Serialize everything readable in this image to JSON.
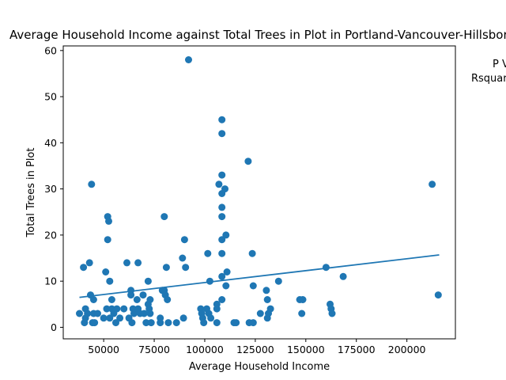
{
  "chart_data": {
    "type": "scatter",
    "title": "Average Household Income against Total Trees in Plot in Portland-Vancouver-Hillsboro",
    "xlabel": "Average Household Income",
    "ylabel": "Total Trees in Plot",
    "xlim": [
      30000,
      224000
    ],
    "ylim": [
      -2.5,
      61
    ],
    "xticks": [
      50000,
      75000,
      100000,
      125000,
      150000,
      175000,
      200000
    ],
    "xtick_labels": [
      "50000",
      "75000",
      "100000",
      "125000",
      "150000",
      "175000",
      "200000"
    ],
    "yticks": [
      0,
      10,
      20,
      30,
      40,
      50,
      60
    ],
    "ytick_labels": [
      "0",
      "10",
      "20",
      "30",
      "40",
      "50",
      "60"
    ],
    "grid": false,
    "annotation_lines": [
      "P V",
      "Rsquar"
    ],
    "colors": {
      "points": "#1f77b4",
      "trendline": "#1f77b4"
    },
    "trendline": {
      "x": [
        38000,
        216000
      ],
      "y": [
        6.5,
        15.7
      ]
    },
    "points": [
      {
        "x": 38000,
        "y": 3
      },
      {
        "x": 40000,
        "y": 13
      },
      {
        "x": 40500,
        "y": 1
      },
      {
        "x": 41000,
        "y": 4
      },
      {
        "x": 41000,
        "y": 2
      },
      {
        "x": 42000,
        "y": 3
      },
      {
        "x": 43000,
        "y": 14
      },
      {
        "x": 43500,
        "y": 7
      },
      {
        "x": 44000,
        "y": 31
      },
      {
        "x": 44500,
        "y": 1
      },
      {
        "x": 45000,
        "y": 6
      },
      {
        "x": 45000,
        "y": 3
      },
      {
        "x": 45500,
        "y": 1
      },
      {
        "x": 47000,
        "y": 3
      },
      {
        "x": 50000,
        "y": 2
      },
      {
        "x": 51000,
        "y": 12
      },
      {
        "x": 51500,
        "y": 4
      },
      {
        "x": 52000,
        "y": 24
      },
      {
        "x": 52000,
        "y": 19
      },
      {
        "x": 52500,
        "y": 23
      },
      {
        "x": 53000,
        "y": 10
      },
      {
        "x": 53000,
        "y": 2
      },
      {
        "x": 54000,
        "y": 4
      },
      {
        "x": 54000,
        "y": 6
      },
      {
        "x": 55000,
        "y": 3
      },
      {
        "x": 56000,
        "y": 1
      },
      {
        "x": 56500,
        "y": 4
      },
      {
        "x": 58000,
        "y": 2
      },
      {
        "x": 60000,
        "y": 4
      },
      {
        "x": 61500,
        "y": 14
      },
      {
        "x": 62500,
        "y": 2
      },
      {
        "x": 63500,
        "y": 8
      },
      {
        "x": 63500,
        "y": 7
      },
      {
        "x": 64000,
        "y": 1
      },
      {
        "x": 64500,
        "y": 4
      },
      {
        "x": 65000,
        "y": 3
      },
      {
        "x": 66500,
        "y": 6
      },
      {
        "x": 67000,
        "y": 14
      },
      {
        "x": 67000,
        "y": 4
      },
      {
        "x": 68000,
        "y": 3
      },
      {
        "x": 69500,
        "y": 7
      },
      {
        "x": 70000,
        "y": 3
      },
      {
        "x": 71000,
        "y": 1
      },
      {
        "x": 72000,
        "y": 10
      },
      {
        "x": 72000,
        "y": 5
      },
      {
        "x": 72500,
        "y": 4
      },
      {
        "x": 73000,
        "y": 3
      },
      {
        "x": 73000,
        "y": 6
      },
      {
        "x": 73500,
        "y": 1
      },
      {
        "x": 78000,
        "y": 2
      },
      {
        "x": 78000,
        "y": 1
      },
      {
        "x": 79000,
        "y": 8
      },
      {
        "x": 80000,
        "y": 24
      },
      {
        "x": 80000,
        "y": 8
      },
      {
        "x": 80500,
        "y": 7
      },
      {
        "x": 81000,
        "y": 13
      },
      {
        "x": 81500,
        "y": 6
      },
      {
        "x": 82000,
        "y": 1
      },
      {
        "x": 86000,
        "y": 1
      },
      {
        "x": 89000,
        "y": 15
      },
      {
        "x": 89500,
        "y": 2
      },
      {
        "x": 90000,
        "y": 19
      },
      {
        "x": 90500,
        "y": 13
      },
      {
        "x": 92000,
        "y": 58
      },
      {
        "x": 98000,
        "y": 4
      },
      {
        "x": 98500,
        "y": 3
      },
      {
        "x": 99000,
        "y": 2
      },
      {
        "x": 99500,
        "y": 1
      },
      {
        "x": 101000,
        "y": 4
      },
      {
        "x": 101500,
        "y": 16
      },
      {
        "x": 102000,
        "y": 3
      },
      {
        "x": 102500,
        "y": 10
      },
      {
        "x": 103000,
        "y": 2
      },
      {
        "x": 106000,
        "y": 1
      },
      {
        "x": 106000,
        "y": 5
      },
      {
        "x": 106000,
        "y": 4
      },
      {
        "x": 107000,
        "y": 31
      },
      {
        "x": 108500,
        "y": 45
      },
      {
        "x": 108500,
        "y": 42
      },
      {
        "x": 108500,
        "y": 33
      },
      {
        "x": 108500,
        "y": 29
      },
      {
        "x": 108500,
        "y": 26
      },
      {
        "x": 108500,
        "y": 24
      },
      {
        "x": 108500,
        "y": 19
      },
      {
        "x": 108500,
        "y": 16
      },
      {
        "x": 108500,
        "y": 11
      },
      {
        "x": 108500,
        "y": 6
      },
      {
        "x": 110000,
        "y": 30
      },
      {
        "x": 110500,
        "y": 20
      },
      {
        "x": 110500,
        "y": 9
      },
      {
        "x": 111000,
        "y": 12
      },
      {
        "x": 114500,
        "y": 1
      },
      {
        "x": 115500,
        "y": 1
      },
      {
        "x": 121500,
        "y": 36
      },
      {
        "x": 122000,
        "y": 1
      },
      {
        "x": 123500,
        "y": 16
      },
      {
        "x": 124000,
        "y": 9
      },
      {
        "x": 124000,
        "y": 1
      },
      {
        "x": 127500,
        "y": 3
      },
      {
        "x": 130500,
        "y": 8
      },
      {
        "x": 131000,
        "y": 6
      },
      {
        "x": 131000,
        "y": 2
      },
      {
        "x": 131500,
        "y": 3
      },
      {
        "x": 132500,
        "y": 4
      },
      {
        "x": 136500,
        "y": 10
      },
      {
        "x": 147000,
        "y": 6
      },
      {
        "x": 148000,
        "y": 3
      },
      {
        "x": 148500,
        "y": 6
      },
      {
        "x": 160000,
        "y": 13
      },
      {
        "x": 162000,
        "y": 5
      },
      {
        "x": 162500,
        "y": 4
      },
      {
        "x": 163000,
        "y": 3
      },
      {
        "x": 168500,
        "y": 11
      },
      {
        "x": 212500,
        "y": 31
      },
      {
        "x": 215500,
        "y": 7
      }
    ]
  }
}
